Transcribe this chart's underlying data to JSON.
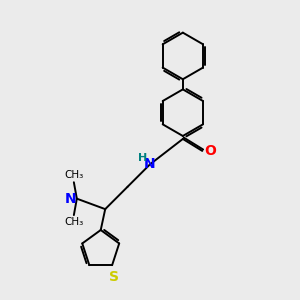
{
  "bg_color": "#ebebeb",
  "bond_color": "#000000",
  "N_color": "#0000ff",
  "O_color": "#ff0000",
  "S_color": "#cccc00",
  "H_color": "#008080",
  "figsize": [
    3.0,
    3.0
  ],
  "dpi": 100,
  "xlim": [
    0,
    10
  ],
  "ylim": [
    0,
    10
  ]
}
